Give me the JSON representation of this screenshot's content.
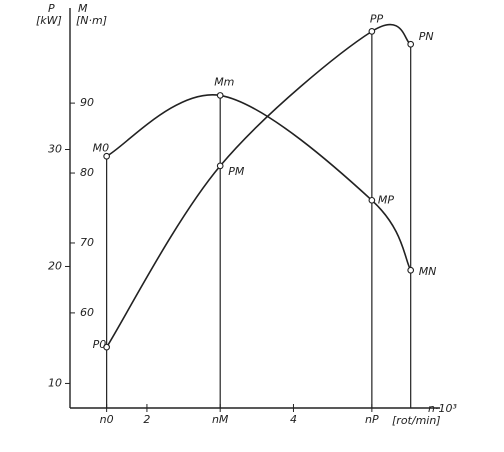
{
  "chart_data": {
    "type": "line",
    "y_label": "P",
    "y_unit": "[kW]",
    "y2_label": "M",
    "y2_unit": "[N·m]",
    "x_label": "n·10³",
    "x_unit": "[rot/min]",
    "x": [
      1.45,
      3,
      5.07,
      5.6
    ],
    "xlim": [
      0.95,
      6.0
    ],
    "xticks": [
      {
        "value": 1.45,
        "label": "n0"
      },
      2,
      {
        "value": 3,
        "label": "nM"
      },
      4,
      {
        "value": 5.07,
        "label": "nP"
      }
    ],
    "ylim": [
      7.9,
      41.5
    ],
    "yticks": [
      10,
      20,
      30
    ],
    "y2lim": [
      46.4,
      102.6
    ],
    "y2ticks": [
      60,
      70,
      80,
      90
    ],
    "series": [
      {
        "color": "#222222",
        "values": [
          13.1,
          28.6,
          40.1,
          39.0
        ],
        "point_labels": [
          "P0",
          "PM",
          "PP",
          "PN"
        ]
      },
      {
        "color": "#222222",
        "axis": "y2",
        "values": [
          82.4,
          91.1,
          76.1,
          66.1
        ],
        "point_labels": [
          "M0",
          "Mm",
          "MP",
          "MN"
        ]
      }
    ]
  }
}
